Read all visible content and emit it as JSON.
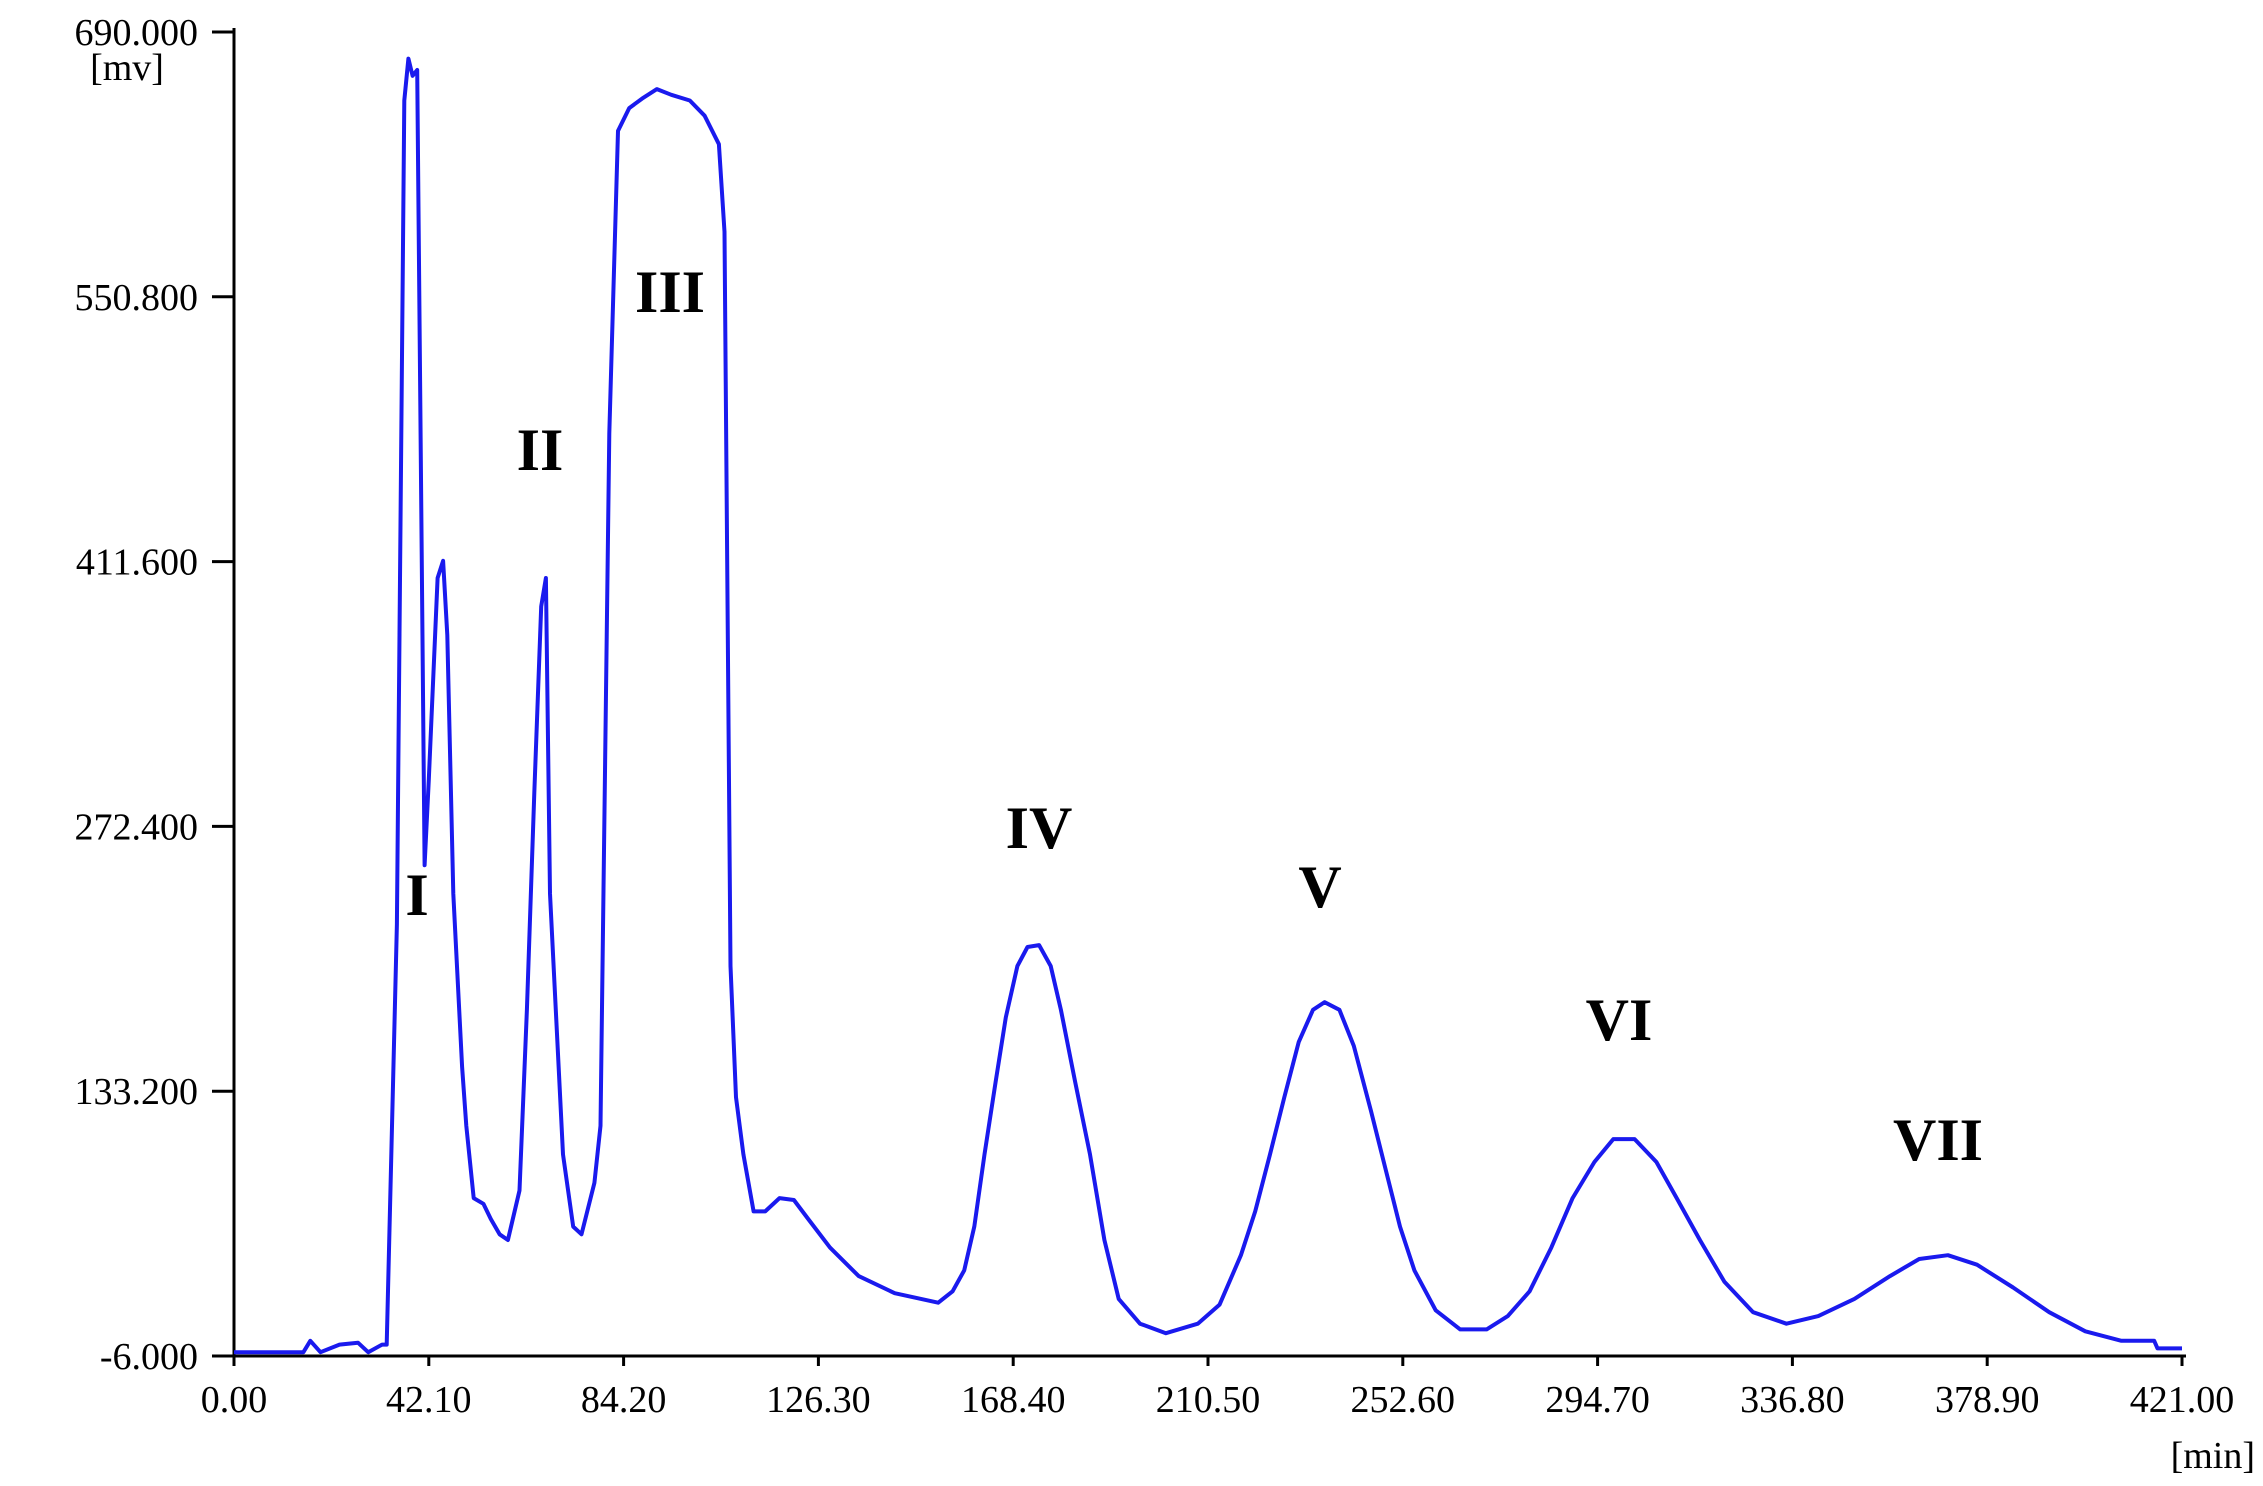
{
  "chart_data": {
    "type": "line",
    "y_unit": "[mv]",
    "x_unit": "[min]",
    "color": "#1a1aee",
    "xlim": [
      0,
      421
    ],
    "ylim": [
      -6,
      690
    ],
    "xticks": [
      {
        "value": 0,
        "label": "0.00"
      },
      {
        "value": 42.1,
        "label": "42.10"
      },
      {
        "value": 84.2,
        "label": "84.20"
      },
      {
        "value": 126.3,
        "label": "126.30"
      },
      {
        "value": 168.4,
        "label": "168.40"
      },
      {
        "value": 210.5,
        "label": "210.50"
      },
      {
        "value": 252.6,
        "label": "252.60"
      },
      {
        "value": 294.7,
        "label": "294.70"
      },
      {
        "value": 336.8,
        "label": "336.80"
      },
      {
        "value": 378.9,
        "label": "378.90"
      },
      {
        "value": 421,
        "label": "421.00"
      }
    ],
    "yticks": [
      {
        "value": -6,
        "label": "-6.000"
      },
      {
        "value": 133.2,
        "label": "133.200"
      },
      {
        "value": 272.4,
        "label": "272.400"
      },
      {
        "value": 411.6,
        "label": "411.600"
      },
      {
        "value": 550.8,
        "label": "550.800"
      },
      {
        "value": 690,
        "label": "690.000"
      }
    ],
    "annotations": [
      "I",
      "II",
      "III",
      "IV",
      "V",
      "VI",
      "VII"
    ],
    "x": [
      0,
      15,
      16.5,
      18.7,
      22.8,
      26.8,
      29,
      32,
      33,
      35.2,
      36.8,
      37.7,
      38.6,
      39.6,
      41.2,
      42.1,
      44,
      45.2,
      46.1,
      47.4,
      49.3,
      50.2,
      51.8,
      53.9,
      55.5,
      57.4,
      59.2,
      61.7,
      63.3,
      64.9,
      66.4,
      67.4,
      68.3,
      71.1,
      73.3,
      75.1,
      77.9,
      79.2,
      81.1,
      83,
      85.4,
      88.2,
      91.4,
      94.5,
      98.5,
      101.7,
      104.8,
      106,
      107.3,
      108.5,
      110.1,
      112.3,
      114.8,
      117.9,
      121,
      124.1,
      128.8,
      135,
      142.8,
      152.2,
      155.3,
      157.8,
      160,
      162.2,
      164.6,
      166.8,
      169.3,
      171.5,
      174,
      176.5,
      178.7,
      181.8,
      185,
      188.1,
      191.2,
      195.8,
      201.4,
      208.3,
      213,
      217.6,
      220.7,
      223.9,
      227,
      230.1,
      233.2,
      235.7,
      238.9,
      242,
      245.7,
      248.8,
      252,
      255.1,
      259.7,
      265,
      270.7,
      275.3,
      280,
      284.7,
      289.3,
      294,
      298.1,
      302.7,
      307.4,
      311.8,
      316.8,
      322.1,
      328.3,
      335.5,
      342.4,
      350.2,
      357.9,
      364.2,
      370.4,
      376.7,
      384.5,
      392.3,
      400.1,
      407.9,
      415,
      415.7,
      421
    ],
    "values": [
      -4,
      -4,
      2,
      -4,
      0,
      1,
      -4,
      0,
      0,
      221,
      654,
      676,
      667,
      670,
      252,
      297,
      403,
      412,
      373,
      237,
      146,
      115,
      77,
      74,
      66,
      58,
      55,
      81,
      176,
      290,
      388,
      403,
      237,
      100,
      62,
      58,
      85,
      115,
      479,
      638,
      650,
      655,
      660,
      657,
      654,
      646,
      631,
      585,
      199,
      130,
      100,
      70,
      70,
      77,
      76,
      66,
      51,
      36,
      27,
      22,
      28,
      39,
      62,
      100,
      138,
      172,
      199,
      209,
      210,
      199,
      176,
      138,
      100,
      55,
      24,
      11,
      6,
      11,
      21,
      47,
      70,
      100,
      130,
      159,
      176,
      180,
      176,
      157,
      123,
      93,
      62,
      39,
      18,
      8,
      8,
      15,
      28,
      51,
      77,
      96,
      108,
      108,
      96,
      77,
      55,
      33,
      17,
      11,
      15,
      24,
      36,
      45,
      47,
      42,
      30,
      17,
      7,
      2,
      2,
      -2,
      -2
    ]
  }
}
